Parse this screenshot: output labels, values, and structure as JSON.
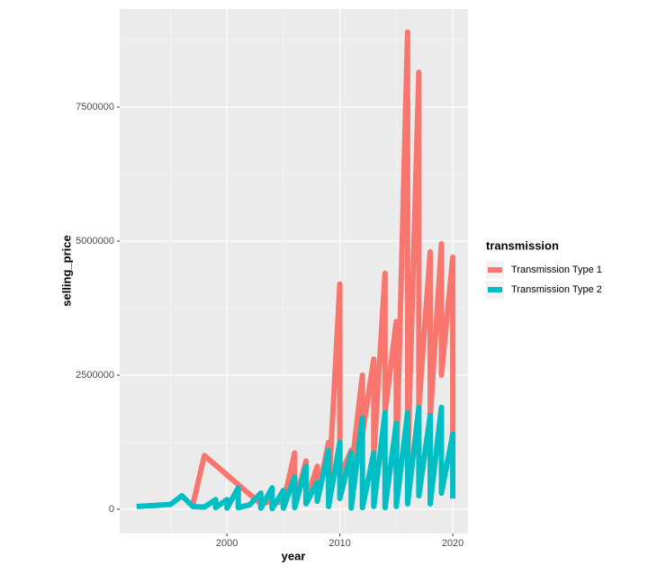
{
  "chart_data": {
    "type": "line",
    "x_label": "year",
    "y_label": "selling_price",
    "legend_title": "transmission",
    "legend_position": "right",
    "grid": true,
    "xlim": [
      1990.5,
      2021.35
    ],
    "ylim": [
      -453000,
      9330000
    ],
    "xticks": [
      2000,
      2010,
      2020
    ],
    "yticks": [
      0,
      2500000,
      5000000,
      7500000
    ],
    "series": [
      {
        "name": "Transmission Type 1",
        "color": "#f8766d",
        "x": [
          1997,
          1998,
          2003,
          2004,
          2005,
          2006,
          2006,
          2007,
          2007,
          2008,
          2008,
          2009,
          2009,
          2010,
          2010,
          2011,
          2011,
          2012,
          2012,
          2013,
          2013,
          2014,
          2014,
          2015,
          2015,
          2016,
          2016,
          2017,
          2017,
          2018,
          2018,
          2019,
          2019,
          2020,
          2020
        ],
        "values": [
          100000,
          1000000,
          100000,
          150000,
          120000,
          1050000,
          100000,
          900000,
          150000,
          800000,
          200000,
          1250000,
          300000,
          4200000,
          600000,
          1100000,
          700000,
          2500000,
          1400000,
          2800000,
          1000000,
          4400000,
          1800000,
          3500000,
          700000,
          8900000,
          800000,
          8150000,
          1900000,
          4800000,
          1700000,
          4950000,
          2500000,
          4700000,
          1400000
        ]
      },
      {
        "name": "Transmission Type 2",
        "color": "#00bfc4",
        "x": [
          1992,
          1995,
          1996,
          1997,
          1998,
          1999,
          1999,
          2000,
          2000,
          2001,
          2001,
          2002,
          2003,
          2003,
          2004,
          2004,
          2005,
          2005,
          2006,
          2006,
          2007,
          2007,
          2008,
          2008,
          2009,
          2009,
          2010,
          2010,
          2011,
          2011,
          2012,
          2012,
          2013,
          2013,
          2014,
          2014,
          2015,
          2015,
          2016,
          2016,
          2017,
          2017,
          2018,
          2018,
          2019,
          2019,
          2020,
          2020
        ],
        "values": [
          50000,
          90000,
          250000,
          50000,
          40000,
          180000,
          30000,
          180000,
          20000,
          400000,
          30000,
          80000,
          300000,
          20000,
          400000,
          10000,
          350000,
          20000,
          600000,
          30000,
          800000,
          100000,
          500000,
          150000,
          1100000,
          50000,
          1250000,
          200000,
          1050000,
          20000,
          1700000,
          30000,
          1050000,
          50000,
          1800000,
          30000,
          1600000,
          50000,
          1800000,
          100000,
          1900000,
          250000,
          1750000,
          100000,
          1900000,
          300000,
          1400000,
          200000
        ]
      }
    ]
  }
}
